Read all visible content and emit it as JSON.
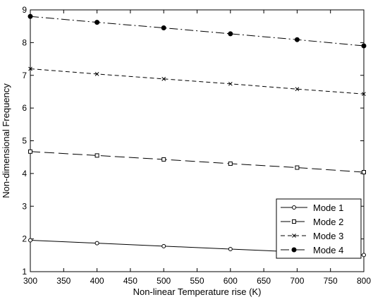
{
  "chart_data": {
    "type": "line",
    "title": "",
    "xlabel": "Non-linear Temperature rise (K)",
    "ylabel": "Non-dimensional Frequency",
    "xlim": [
      300,
      800
    ],
    "ylim": [
      1,
      9
    ],
    "xticks": [
      300,
      350,
      400,
      450,
      500,
      550,
      600,
      650,
      700,
      750,
      800
    ],
    "yticks": [
      1,
      2,
      3,
      4,
      5,
      6,
      7,
      8,
      9
    ],
    "grid": false,
    "legend_position": "lower-right",
    "x": [
      300,
      400,
      500,
      600,
      700,
      800
    ],
    "series": [
      {
        "name": "Mode 1",
        "values": [
          1.96,
          1.87,
          1.78,
          1.69,
          1.6,
          1.51
        ],
        "line_style": "solid",
        "marker": "circle-open",
        "color": "#000000"
      },
      {
        "name": "Mode 2",
        "values": [
          4.67,
          4.55,
          4.43,
          4.3,
          4.18,
          4.04
        ],
        "line_style": "long-dash",
        "marker": "square-open",
        "color": "#000000"
      },
      {
        "name": "Mode 3",
        "values": [
          7.2,
          7.04,
          6.89,
          6.74,
          6.58,
          6.43
        ],
        "line_style": "dashed",
        "marker": "x",
        "color": "#000000"
      },
      {
        "name": "Mode 4",
        "values": [
          8.8,
          8.62,
          8.45,
          8.27,
          8.09,
          7.9
        ],
        "line_style": "dash-dot",
        "marker": "circle-filled",
        "color": "#000000"
      }
    ]
  }
}
